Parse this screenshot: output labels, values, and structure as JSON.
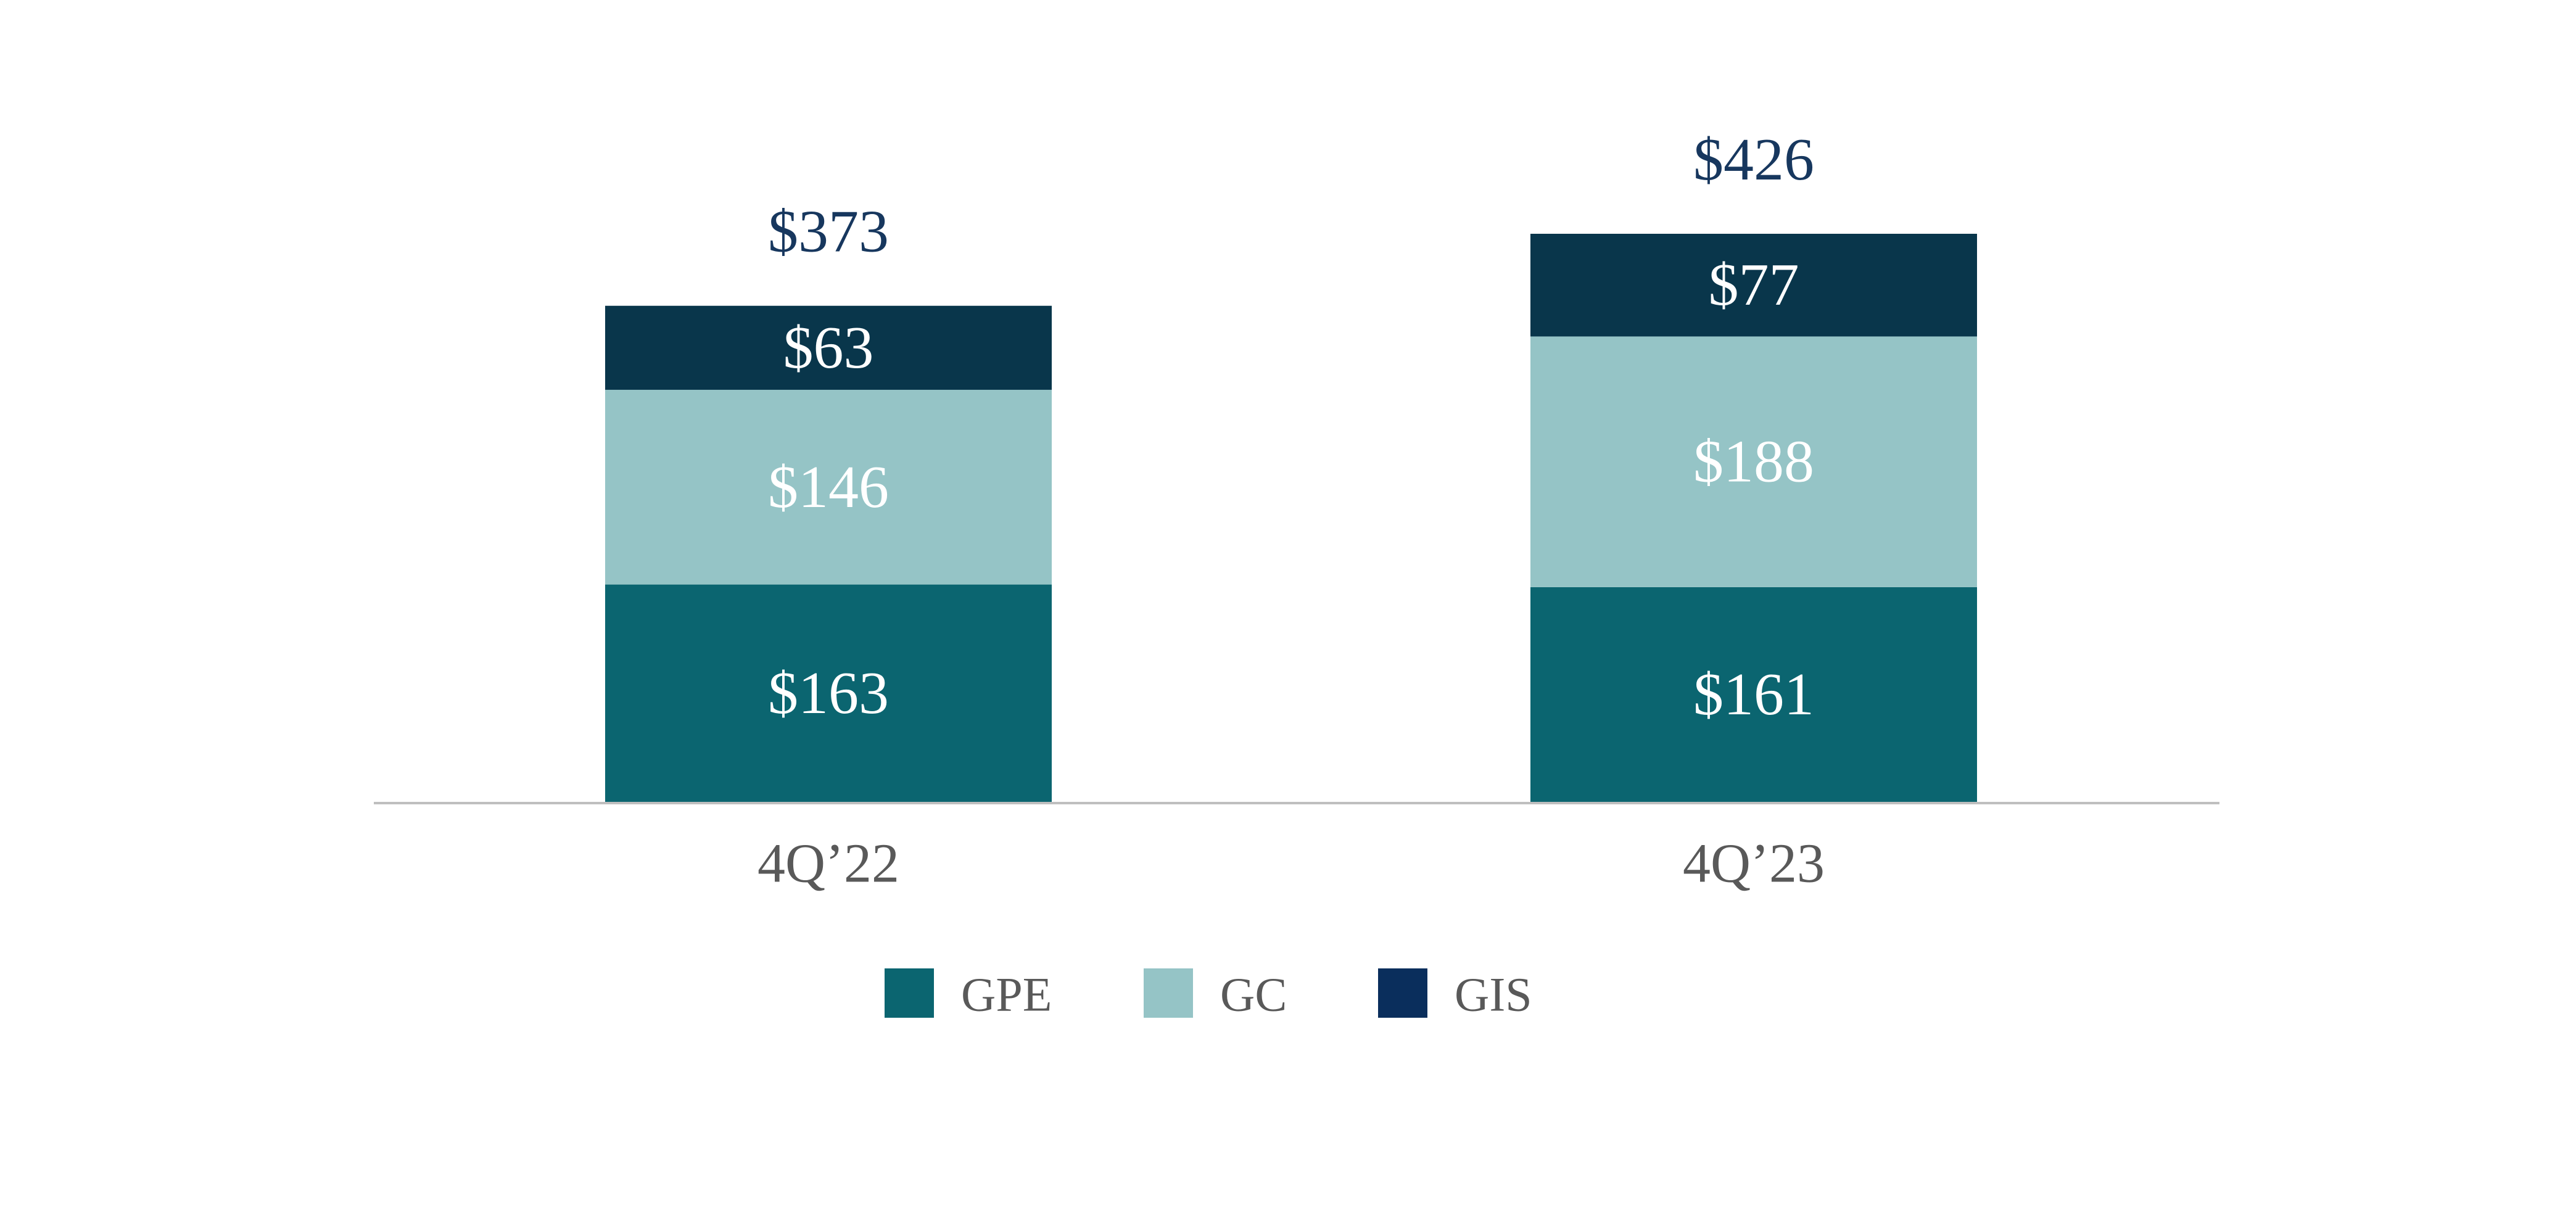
{
  "chart_data": {
    "type": "bar",
    "stacked": true,
    "categories": [
      "4Q’22",
      "4Q’23"
    ],
    "series": [
      {
        "name": "GPE",
        "values": [
          163,
          161
        ],
        "labels": [
          "$163",
          "$161"
        ],
        "color": "#0b6570"
      },
      {
        "name": "GC",
        "values": [
          146,
          188
        ],
        "labels": [
          "$146",
          "$188"
        ],
        "color": "#95c4c6"
      },
      {
        "name": "GIS",
        "values": [
          63,
          77
        ],
        "labels": [
          "$63",
          "$77"
        ],
        "color": "#09364b"
      }
    ],
    "totals": [
      373,
      426
    ],
    "total_labels": [
      "$373",
      "$426"
    ],
    "title": "",
    "xlabel": "",
    "ylabel": "",
    "ylim": [
      0,
      426
    ],
    "grid": false,
    "legend_position": "bottom",
    "legend_colors": [
      "#0b6570",
      "#95c4c6",
      "#0a2e5c"
    ],
    "label_color": "#ffffff",
    "total_color": "#17375e",
    "tick_color": "#595959",
    "axis_color": "#bfbfbf"
  }
}
